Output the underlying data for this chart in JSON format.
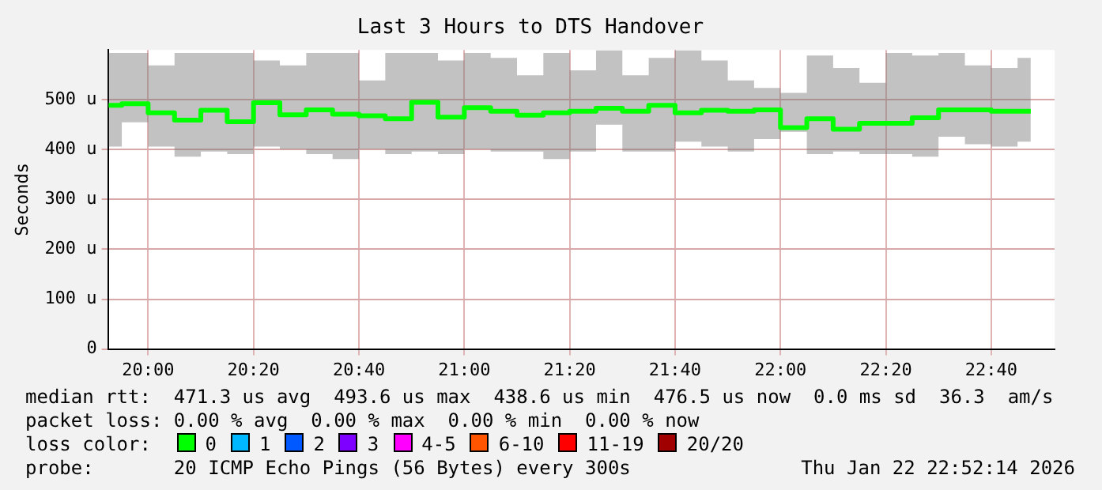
{
  "chart_data": {
    "type": "step",
    "title": "Last 3 Hours to DTS Handover",
    "ylabel": "Seconds",
    "x": [
      19.875,
      19.9583,
      20.0417,
      20.125,
      20.2083,
      20.2917,
      20.375,
      20.4583,
      20.5417,
      20.625,
      20.7083,
      20.7917,
      20.875,
      20.9583,
      21.0417,
      21.125,
      21.2083,
      21.2917,
      21.375,
      21.4583,
      21.5417,
      21.625,
      21.7083,
      21.7917,
      21.875,
      21.9583,
      22.0417,
      22.125,
      22.2083,
      22.2917,
      22.375,
      22.4583,
      22.5417,
      22.625,
      22.7083,
      22.7917
    ],
    "series": [
      {
        "color": "#00ff00",
        "values": [
          489,
          492,
          474,
          459,
          479,
          456,
          494,
          470,
          480,
          471,
          468,
          462,
          495,
          465,
          484,
          477,
          469,
          474,
          477,
          483,
          477,
          489,
          474,
          479,
          477,
          480,
          444,
          462,
          441,
          453,
          453,
          464,
          480,
          480,
          477,
          477
        ],
        "lower": [
          406,
          455,
          406,
          386,
          396,
          391,
          406,
          401,
          391,
          381,
          401,
          391,
          396,
          391,
          401,
          396,
          396,
          381,
          396,
          450,
          396,
          396,
          416,
          406,
          396,
          421,
          436,
          391,
          396,
          391,
          391,
          386,
          426,
          411,
          406,
          416
        ],
        "upper": [
          594,
          594,
          569,
          594,
          594,
          594,
          579,
          569,
          594,
          594,
          539,
          594,
          594,
          579,
          594,
          584,
          549,
          594,
          559,
          599,
          549,
          584,
          599,
          579,
          539,
          524,
          514,
          589,
          564,
          534,
          594,
          589,
          594,
          569,
          564,
          584
        ]
      }
    ],
    "xlim": [
      19.873,
      22.867
    ],
    "xticks": [
      {
        "value": 20,
        "label": "20:00"
      },
      {
        "value": 20.3333,
        "label": "20:20"
      },
      {
        "value": 20.6667,
        "label": "20:40"
      },
      {
        "value": 21,
        "label": "21:00"
      },
      {
        "value": 21.3333,
        "label": "21:20"
      },
      {
        "value": 21.6667,
        "label": "21:40"
      },
      {
        "value": 22,
        "label": "22:00"
      },
      {
        "value": 22.3333,
        "label": "22:20"
      },
      {
        "value": 22.6667,
        "label": "22:40"
      }
    ],
    "ylim": [
      0,
      600
    ],
    "yticks": [
      0,
      {
        "value": 100,
        "label": "100 u"
      },
      {
        "value": 200,
        "label": "200 u"
      },
      {
        "value": 300,
        "label": "300 u"
      },
      {
        "value": 400,
        "label": "400 u"
      },
      {
        "value": 500,
        "label": "500 u"
      }
    ],
    "grid": true,
    "line_style": "solid",
    "marker": "none",
    "legend": false,
    "annotations": [
      "median rtt:  471.3 us avg  493.6 us max  438.6 us min  476.5 us now  0.0 ms sd  36.3  am/s",
      "packet loss: 0.00 % avg  0.00 % max  0.00 % min  0.00 % now",
      "loss color:",
      "0",
      "1",
      "2",
      "3",
      "4-5",
      "6-10",
      "11-19",
      "20/20",
      "probe:       20 ICMP Echo Pings (56 Bytes) every 300s",
      "Thu Jan 22 22:52:14 2026"
    ]
  }
}
